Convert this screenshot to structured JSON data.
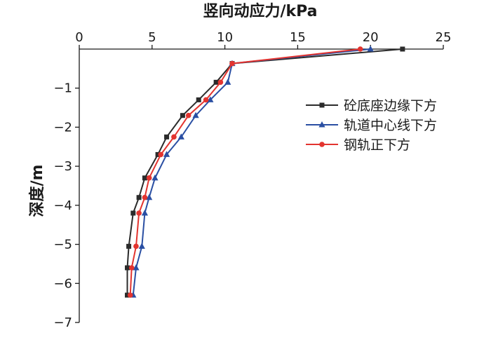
{
  "chart_data": {
    "type": "line",
    "xlabel": "竖向动应力/kPa",
    "ylabel": "深度/m",
    "xlim": [
      0,
      25
    ],
    "ylim": [
      -7,
      0
    ],
    "xticks": [
      0,
      5,
      10,
      15,
      20,
      25
    ],
    "yticks": [
      -1,
      -2,
      -3,
      -4,
      -5,
      -6,
      -7
    ],
    "x_axis_position": "top",
    "grid": false,
    "legend_position": "right",
    "series": [
      {
        "name": "砼底座边缘下方",
        "color": "#2b2b2b",
        "marker": "square",
        "points": [
          [
            22.2,
            0
          ],
          [
            10.5,
            -0.37
          ],
          [
            9.4,
            -0.85
          ],
          [
            8.2,
            -1.3
          ],
          [
            7.1,
            -1.7
          ],
          [
            6.0,
            -2.25
          ],
          [
            5.4,
            -2.7
          ],
          [
            4.5,
            -3.3
          ],
          [
            4.1,
            -3.8
          ],
          [
            3.7,
            -4.2
          ],
          [
            3.4,
            -5.05
          ],
          [
            3.3,
            -5.6
          ],
          [
            3.3,
            -6.3
          ]
        ]
      },
      {
        "name": "轨道中心线下方",
        "color": "#2a4fa3",
        "marker": "triangle",
        "points": [
          [
            20.0,
            0
          ],
          [
            10.5,
            -0.37
          ],
          [
            10.2,
            -0.85
          ],
          [
            9.0,
            -1.3
          ],
          [
            8.0,
            -1.7
          ],
          [
            7.0,
            -2.25
          ],
          [
            6.0,
            -2.7
          ],
          [
            5.2,
            -3.3
          ],
          [
            4.8,
            -3.8
          ],
          [
            4.5,
            -4.2
          ],
          [
            4.3,
            -5.05
          ],
          [
            3.9,
            -5.6
          ],
          [
            3.7,
            -6.3
          ]
        ]
      },
      {
        "name": "钢轨正下方",
        "color": "#e3342f",
        "marker": "circle",
        "points": [
          [
            19.3,
            0
          ],
          [
            10.5,
            -0.37
          ],
          [
            9.7,
            -0.85
          ],
          [
            8.7,
            -1.3
          ],
          [
            7.5,
            -1.7
          ],
          [
            6.5,
            -2.25
          ],
          [
            5.6,
            -2.7
          ],
          [
            4.8,
            -3.3
          ],
          [
            4.5,
            -3.8
          ],
          [
            4.1,
            -4.2
          ],
          [
            3.9,
            -5.05
          ],
          [
            3.6,
            -5.6
          ],
          [
            3.5,
            -6.3
          ]
        ]
      }
    ]
  }
}
